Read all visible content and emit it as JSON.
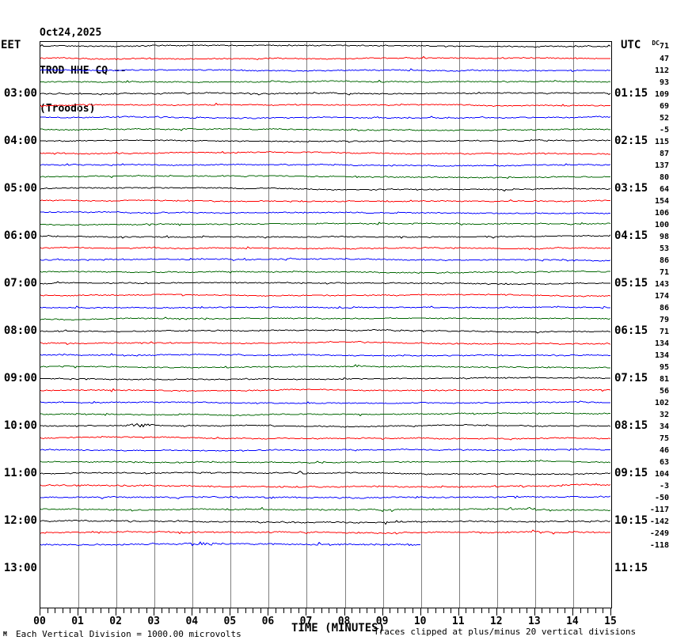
{
  "header": {
    "date": "Oct24,2025",
    "station": "TROD HHE CQ --",
    "location": "(Troodos)"
  },
  "axes": {
    "left_label": "EET",
    "right_label": "UTC",
    "x_title": "TIME (MINUTES)"
  },
  "right_column": {
    "dc_label": "DC"
  },
  "footer": {
    "watermark": "M",
    "division_note": "Each Vertical Division = 1000.00 microvolts",
    "clip_note": "Traces clipped at plus/minus 20 vertical divisions"
  },
  "chart_data": {
    "type": "line",
    "subtype": "helicorder-seismogram",
    "title": "TROD HHE CQ -- (Troodos) Oct24,2025",
    "xlabel": "TIME (MINUTES)",
    "x_range_minutes": [
      0,
      15
    ],
    "x_tick_labels": [
      "00",
      "01",
      "02",
      "03",
      "04",
      "05",
      "06",
      "07",
      "08",
      "09",
      "10",
      "11",
      "12",
      "13",
      "14",
      "15"
    ],
    "minor_ticks_per_minute": 5,
    "row_duration_minutes": 15,
    "grid_color": "#7f7f7f",
    "colors_cycle": [
      "#000000",
      "#ff0000",
      "#0000ff",
      "#006600"
    ],
    "left_time_labels": [
      {
        "text": "03:00",
        "row": 4
      },
      {
        "text": "04:00",
        "row": 8
      },
      {
        "text": "05:00",
        "row": 12
      },
      {
        "text": "06:00",
        "row": 16
      },
      {
        "text": "07:00",
        "row": 20
      },
      {
        "text": "08:00",
        "row": 24
      },
      {
        "text": "09:00",
        "row": 28
      },
      {
        "text": "10:00",
        "row": 32
      },
      {
        "text": "11:00",
        "row": 36
      },
      {
        "text": "12:00",
        "row": 40
      },
      {
        "text": "13:00",
        "row": 44
      }
    ],
    "right_time_labels": [
      {
        "text": "01:15",
        "row": 4
      },
      {
        "text": "02:15",
        "row": 8
      },
      {
        "text": "03:15",
        "row": 12
      },
      {
        "text": "04:15",
        "row": 16
      },
      {
        "text": "05:15",
        "row": 20
      },
      {
        "text": "06:15",
        "row": 24
      },
      {
        "text": "07:15",
        "row": 28
      },
      {
        "text": "08:15",
        "row": 32
      },
      {
        "text": "09:15",
        "row": 36
      },
      {
        "text": "10:15",
        "row": 40
      },
      {
        "text": "11:15",
        "row": 44
      }
    ],
    "rows": [
      {
        "dc": 71,
        "color": "#000000",
        "end_min": 15,
        "amp": 0.9
      },
      {
        "dc": 47,
        "color": "#ff0000",
        "end_min": 15,
        "amp": 0.9
      },
      {
        "dc": 112,
        "color": "#0000ff",
        "end_min": 15,
        "amp": 0.9
      },
      {
        "dc": 93,
        "color": "#006600",
        "end_min": 15,
        "amp": 0.9
      },
      {
        "dc": 109,
        "color": "#000000",
        "end_min": 15,
        "amp": 0.9
      },
      {
        "dc": 69,
        "color": "#ff0000",
        "end_min": 15,
        "amp": 0.9
      },
      {
        "dc": 52,
        "color": "#0000ff",
        "end_min": 15,
        "amp": 0.9
      },
      {
        "dc": -5,
        "color": "#006600",
        "end_min": 15,
        "amp": 0.9
      },
      {
        "dc": 115,
        "color": "#000000",
        "end_min": 15,
        "amp": 0.9
      },
      {
        "dc": 87,
        "color": "#ff0000",
        "end_min": 15,
        "amp": 0.9
      },
      {
        "dc": 137,
        "color": "#0000ff",
        "end_min": 15,
        "amp": 0.9
      },
      {
        "dc": 80,
        "color": "#006600",
        "end_min": 15,
        "amp": 0.9
      },
      {
        "dc": 64,
        "color": "#000000",
        "end_min": 15,
        "amp": 0.9
      },
      {
        "dc": 154,
        "color": "#ff0000",
        "end_min": 15,
        "amp": 0.9
      },
      {
        "dc": 106,
        "color": "#0000ff",
        "end_min": 15,
        "amp": 0.9
      },
      {
        "dc": 100,
        "color": "#006600",
        "end_min": 15,
        "amp": 0.9
      },
      {
        "dc": 98,
        "color": "#000000",
        "end_min": 15,
        "amp": 0.9
      },
      {
        "dc": 53,
        "color": "#ff0000",
        "end_min": 15,
        "amp": 0.9
      },
      {
        "dc": 86,
        "color": "#0000ff",
        "end_min": 15,
        "amp": 0.9
      },
      {
        "dc": 71,
        "color": "#006600",
        "end_min": 15,
        "amp": 0.9
      },
      {
        "dc": 143,
        "color": "#000000",
        "end_min": 15,
        "amp": 0.9
      },
      {
        "dc": 174,
        "color": "#ff0000",
        "end_min": 15,
        "amp": 0.9
      },
      {
        "dc": 86,
        "color": "#0000ff",
        "end_min": 15,
        "amp": 0.9
      },
      {
        "dc": 79,
        "color": "#006600",
        "end_min": 15,
        "amp": 0.9
      },
      {
        "dc": 71,
        "color": "#000000",
        "end_min": 15,
        "amp": 0.9
      },
      {
        "dc": 134,
        "color": "#ff0000",
        "end_min": 15,
        "amp": 0.9
      },
      {
        "dc": 134,
        "color": "#0000ff",
        "end_min": 15,
        "amp": 0.9
      },
      {
        "dc": 95,
        "color": "#006600",
        "end_min": 15,
        "amp": 0.9
      },
      {
        "dc": 81,
        "color": "#000000",
        "end_min": 15,
        "amp": 0.9
      },
      {
        "dc": 56,
        "color": "#ff0000",
        "end_min": 15,
        "amp": 0.9
      },
      {
        "dc": 102,
        "color": "#0000ff",
        "end_min": 15,
        "amp": 0.9
      },
      {
        "dc": 32,
        "color": "#006600",
        "end_min": 15,
        "amp": 0.9
      },
      {
        "dc": 34,
        "color": "#000000",
        "end_min": 15,
        "amp": 0.9
      },
      {
        "dc": 75,
        "color": "#ff0000",
        "end_min": 15,
        "amp": 0.9
      },
      {
        "dc": 46,
        "color": "#0000ff",
        "end_min": 15,
        "amp": 0.9
      },
      {
        "dc": 63,
        "color": "#006600",
        "end_min": 15,
        "amp": 0.9
      },
      {
        "dc": 104,
        "color": "#000000",
        "end_min": 15,
        "amp": 0.9
      },
      {
        "dc": -3,
        "color": "#ff0000",
        "end_min": 15,
        "amp": 1.2
      },
      {
        "dc": -50,
        "color": "#0000ff",
        "end_min": 15,
        "amp": 1.2
      },
      {
        "dc": -117,
        "color": "#006600",
        "end_min": 15,
        "amp": 1.2
      },
      {
        "dc": -142,
        "color": "#000000",
        "end_min": 15,
        "amp": 1.2
      },
      {
        "dc": -249,
        "color": "#ff0000",
        "end_min": 15,
        "amp": 1.2
      },
      {
        "dc": -118,
        "color": "#0000ff",
        "end_min": 10,
        "amp": 1.3
      }
    ],
    "events": [
      {
        "row": 32,
        "min": 2.55,
        "amp": 2.2
      },
      {
        "row": 36,
        "min": 6.85,
        "amp": 1.8
      },
      {
        "row": 42,
        "min": 4.3,
        "amp": 1.5
      }
    ],
    "notes": "Near-flat noisy traces clipped at +/-20 vertical divisions; each vertical division = 1000.00 microvolts; last trace ends at minute 10."
  }
}
